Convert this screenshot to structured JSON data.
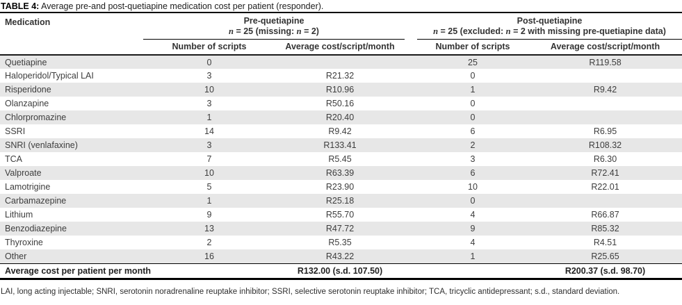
{
  "colors": {
    "row_stripe": "#e7e7e7"
  },
  "title": {
    "label": "TABLE 4:",
    "text": " Average pre-and post-quetiapine medication cost per patient (responder)."
  },
  "header": {
    "medication": "Medication",
    "pre": {
      "name": "Pre-quetiapine",
      "n1": "n",
      "mid1": " = 25 (missing: ",
      "n2": "n",
      "end": " = 2)"
    },
    "post": {
      "name": "Post-quetiapine",
      "n1": "n",
      "mid1": " = 25 (excluded: ",
      "n2": "n",
      "end": " = 2 with missing pre-quetiapine data)"
    },
    "subcols": {
      "scripts": "Number of scripts",
      "avg": "Average cost/script/month"
    }
  },
  "rows": [
    {
      "medication": "Quetiapine",
      "pre_scripts": "0",
      "pre_avg": "",
      "post_scripts": "25",
      "post_avg": "R119.58"
    },
    {
      "medication": "Haloperidol/Typical LAI",
      "pre_scripts": "3",
      "pre_avg": "R21.32",
      "post_scripts": "0",
      "post_avg": ""
    },
    {
      "medication": "Risperidone",
      "pre_scripts": "10",
      "pre_avg": "R10.96",
      "post_scripts": "1",
      "post_avg": "R9.42"
    },
    {
      "medication": "Olanzapine",
      "pre_scripts": "3",
      "pre_avg": "R50.16",
      "post_scripts": "0",
      "post_avg": ""
    },
    {
      "medication": "Chlorpromazine",
      "pre_scripts": "1",
      "pre_avg": "R20.40",
      "post_scripts": "0",
      "post_avg": ""
    },
    {
      "medication": "SSRI",
      "pre_scripts": "14",
      "pre_avg": "R9.42",
      "post_scripts": "6",
      "post_avg": "R6.95"
    },
    {
      "medication": "SNRI (venlafaxine)",
      "pre_scripts": "3",
      "pre_avg": "R133.41",
      "post_scripts": "2",
      "post_avg": "R108.32"
    },
    {
      "medication": "TCA",
      "pre_scripts": "7",
      "pre_avg": "R5.45",
      "post_scripts": "3",
      "post_avg": "R6.30"
    },
    {
      "medication": "Valproate",
      "pre_scripts": "10",
      "pre_avg": "R63.39",
      "post_scripts": "6",
      "post_avg": "R72.41"
    },
    {
      "medication": "Lamotrigine",
      "pre_scripts": "5",
      "pre_avg": "R23.90",
      "post_scripts": "10",
      "post_avg": "R22.01"
    },
    {
      "medication": "Carbamazepine",
      "pre_scripts": "1",
      "pre_avg": "R25.18",
      "post_scripts": "0",
      "post_avg": ""
    },
    {
      "medication": "Lithium",
      "pre_scripts": "9",
      "pre_avg": "R55.70",
      "post_scripts": "4",
      "post_avg": "R66.87"
    },
    {
      "medication": "Benzodiazepine",
      "pre_scripts": "13",
      "pre_avg": "R47.72",
      "post_scripts": "9",
      "post_avg": "R85.32"
    },
    {
      "medication": "Thyroxine",
      "pre_scripts": "2",
      "pre_avg": "R5.35",
      "post_scripts": "4",
      "post_avg": "R4.51"
    },
    {
      "medication": "Other",
      "pre_scripts": "16",
      "pre_avg": "R43.22",
      "post_scripts": "1",
      "post_avg": "R25.65"
    }
  ],
  "summary": {
    "label": "Average cost per patient per month",
    "pre": "R132.00 (s.d. 107.50)",
    "post": "R200.37 (s.d. 98.70)"
  },
  "footnote": "LAI, long acting injectable; SNRI, serotonin noradrenaline reuptake inhibitor; SSRI, selective serotonin reuptake inhibitor; TCA, tricyclic antidepressant; s.d., standard deviation."
}
